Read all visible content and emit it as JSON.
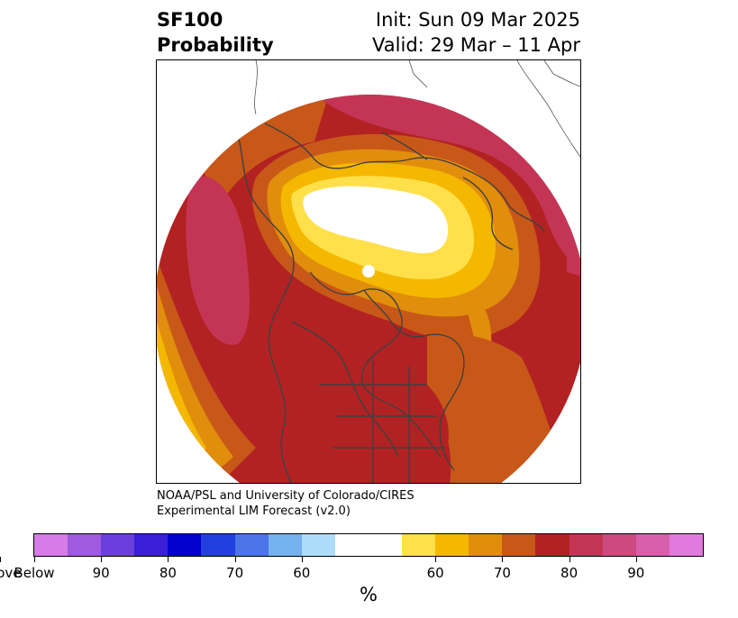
{
  "title": {
    "variable": "SF100",
    "field": "Probability",
    "init": "Init: Sun 09 Mar 2025",
    "valid": "Valid: 29 Mar – 11 Apr"
  },
  "credit": {
    "line1": "NOAA/PSL and University of Colorado/CIRES",
    "line2": "Experimental LIM Forecast (v2.0)"
  },
  "colorbar": {
    "unit": "%",
    "colors": [
      "#d67be8",
      "#a05ae0",
      "#6a3fdc",
      "#3a1fd6",
      "#0000cf",
      "#2240dd",
      "#4d74e8",
      "#74b2f0",
      "#addcfb",
      "#ffffff",
      "#ffe04a",
      "#f5b800",
      "#e08e0c",
      "#c85818",
      "#b22222",
      "#c43555",
      "#cc4a80",
      "#d760ad",
      "#e279dc"
    ],
    "labels": [
      "Below",
      "90",
      "80",
      "70",
      "60",
      "60",
      "70",
      "80",
      "90",
      "Above"
    ]
  },
  "map": {
    "projection": "north-polar-stereographic",
    "region": "Northern Hemisphere"
  }
}
